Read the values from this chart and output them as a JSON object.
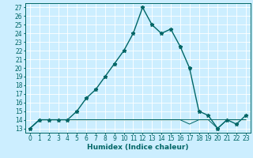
{
  "xlabel": "Humidex (Indice chaleur)",
  "x_values": [
    0,
    1,
    2,
    3,
    4,
    5,
    6,
    7,
    8,
    9,
    10,
    11,
    12,
    13,
    14,
    15,
    16,
    17,
    18,
    19,
    20,
    21,
    22,
    23
  ],
  "y_main": [
    13,
    14,
    14,
    14,
    14,
    15,
    16.5,
    17.5,
    19,
    20.5,
    22,
    24,
    27,
    25,
    24,
    24.5,
    22.5,
    20,
    15,
    14.5,
    13,
    14,
    13.5,
    14.5
  ],
  "y_line2": [
    13,
    14,
    14,
    14,
    14,
    14,
    14,
    14,
    14,
    14,
    14,
    14,
    14,
    14,
    14,
    14,
    14,
    14,
    14,
    14,
    14,
    14,
    14,
    14
  ],
  "y_line3": [
    13,
    14,
    14,
    14,
    14,
    14,
    14,
    14,
    14,
    14,
    14,
    14,
    14,
    14,
    14,
    14,
    14,
    13.5,
    14,
    14,
    13,
    14,
    14,
    14
  ],
  "line_color": "#006666",
  "bg_color": "#cceeff",
  "grid_color": "#ffffff",
  "xlim": [
    -0.5,
    23.5
  ],
  "ylim": [
    12.5,
    27.5
  ],
  "yticks": [
    13,
    14,
    15,
    16,
    17,
    18,
    19,
    20,
    21,
    22,
    23,
    24,
    25,
    26,
    27
  ],
  "xticks": [
    0,
    1,
    2,
    3,
    4,
    5,
    6,
    7,
    8,
    9,
    10,
    11,
    12,
    13,
    14,
    15,
    16,
    17,
    18,
    19,
    20,
    21,
    22,
    23
  ],
  "marker": "*",
  "markersize": 3.5,
  "linewidth": 1.0,
  "fontsize_tick": 5.5,
  "fontsize_label": 6.5
}
